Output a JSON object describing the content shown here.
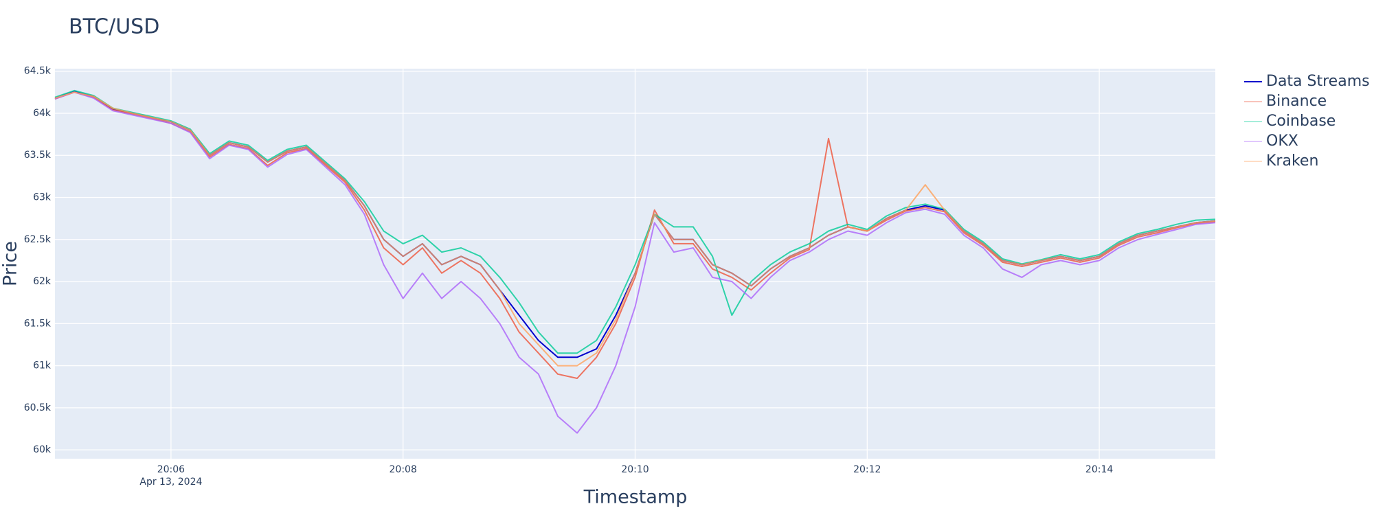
{
  "chart_data": {
    "type": "line",
    "title": "BTC/USD",
    "x_label": "Timestamp",
    "y_label": "Price",
    "x": [
      "2024-04-13 20:05:00",
      "2024-04-13 20:05:10",
      "2024-04-13 20:05:20",
      "2024-04-13 20:05:30",
      "2024-04-13 20:05:40",
      "2024-04-13 20:05:50",
      "2024-04-13 20:06:00",
      "2024-04-13 20:06:10",
      "2024-04-13 20:06:20",
      "2024-04-13 20:06:30",
      "2024-04-13 20:06:40",
      "2024-04-13 20:06:50",
      "2024-04-13 20:07:00",
      "2024-04-13 20:07:10",
      "2024-04-13 20:07:20",
      "2024-04-13 20:07:30",
      "2024-04-13 20:07:40",
      "2024-04-13 20:07:50",
      "2024-04-13 20:08:00",
      "2024-04-13 20:08:10",
      "2024-04-13 20:08:20",
      "2024-04-13 20:08:30",
      "2024-04-13 20:08:40",
      "2024-04-13 20:08:50",
      "2024-04-13 20:09:00",
      "2024-04-13 20:09:10",
      "2024-04-13 20:09:20",
      "2024-04-13 20:09:30",
      "2024-04-13 20:09:40",
      "2024-04-13 20:09:50",
      "2024-04-13 20:10:00",
      "2024-04-13 20:10:10",
      "2024-04-13 20:10:20",
      "2024-04-13 20:10:30",
      "2024-04-13 20:10:40",
      "2024-04-13 20:10:50",
      "2024-04-13 20:11:00",
      "2024-04-13 20:11:10",
      "2024-04-13 20:11:20",
      "2024-04-13 20:11:30",
      "2024-04-13 20:11:40",
      "2024-04-13 20:11:50",
      "2024-04-13 20:12:00",
      "2024-04-13 20:12:10",
      "2024-04-13 20:12:20",
      "2024-04-13 20:12:30",
      "2024-04-13 20:12:40",
      "2024-04-13 20:12:50",
      "2024-04-13 20:13:00",
      "2024-04-13 20:13:10",
      "2024-04-13 20:13:20",
      "2024-04-13 20:13:30",
      "2024-04-13 20:13:40",
      "2024-04-13 20:13:50",
      "2024-04-13 20:14:00",
      "2024-04-13 20:14:10",
      "2024-04-13 20:14:20",
      "2024-04-13 20:14:30",
      "2024-04-13 20:14:40",
      "2024-04-13 20:14:50",
      "2024-04-13 20:15:00"
    ],
    "series": [
      {
        "name": "Data Streams",
        "color": "#0000cc",
        "values": [
          64180,
          64260,
          64200,
          64050,
          64000,
          63950,
          63900,
          63800,
          63500,
          63650,
          63600,
          63420,
          63550,
          63600,
          63400,
          63200,
          62900,
          62500,
          62300,
          62450,
          62200,
          62300,
          62200,
          61900,
          61600,
          61300,
          61100,
          61100,
          61200,
          61600,
          62100,
          62800,
          62500,
          62500,
          62200,
          62100,
          61950,
          62150,
          62300,
          62400,
          62550,
          62650,
          62600,
          62750,
          62850,
          62900,
          62850,
          62600,
          62450,
          62250,
          62200,
          62250,
          62300,
          62250,
          62300,
          62450,
          62550,
          62600,
          62650,
          62700,
          62720
        ]
      },
      {
        "name": "Binance",
        "color": "#ef553b",
        "values": [
          64170,
          64250,
          64190,
          64040,
          63990,
          63940,
          63880,
          63780,
          63480,
          63630,
          63580,
          63380,
          63530,
          63580,
          63380,
          63180,
          62850,
          62400,
          62200,
          62400,
          62100,
          62250,
          62100,
          61800,
          61400,
          61150,
          60900,
          60850,
          61100,
          61500,
          62050,
          62850,
          62450,
          62450,
          62150,
          62050,
          61900,
          62100,
          62280,
          62380,
          63700,
          62650,
          62600,
          62730,
          62840,
          62880,
          62830,
          62580,
          62430,
          62230,
          62180,
          62230,
          62280,
          62230,
          62280,
          62430,
          62530,
          62580,
          62640,
          62690,
          62710
        ]
      },
      {
        "name": "Coinbase",
        "color": "#00cc96",
        "values": [
          64190,
          64270,
          64210,
          64060,
          64010,
          63960,
          63910,
          63810,
          63520,
          63670,
          63620,
          63440,
          63570,
          63620,
          63420,
          63220,
          62950,
          62600,
          62450,
          62550,
          62350,
          62400,
          62300,
          62050,
          61750,
          61400,
          61150,
          61150,
          61300,
          61700,
          62200,
          62800,
          62650,
          62650,
          62300,
          61600,
          62000,
          62200,
          62350,
          62450,
          62600,
          62680,
          62620,
          62780,
          62880,
          62920,
          62860,
          62620,
          62470,
          62270,
          62210,
          62260,
          62320,
          62270,
          62320,
          62470,
          62570,
          62620,
          62680,
          62730,
          62740
        ]
      },
      {
        "name": "OKX",
        "color": "#ab63fa",
        "values": [
          64170,
          64250,
          64180,
          64030,
          63980,
          63930,
          63880,
          63770,
          63460,
          63620,
          63570,
          63360,
          63510,
          63570,
          63360,
          63150,
          62800,
          62200,
          61800,
          62100,
          61800,
          62000,
          61800,
          61500,
          61100,
          60900,
          60400,
          60200,
          60500,
          61000,
          61700,
          62700,
          62350,
          62400,
          62050,
          62000,
          61800,
          62050,
          62250,
          62350,
          62500,
          62600,
          62550,
          62700,
          62820,
          62860,
          62800,
          62550,
          62400,
          62150,
          62050,
          62200,
          62250,
          62200,
          62250,
          62400,
          62500,
          62560,
          62620,
          62680,
          62700
        ]
      },
      {
        "name": "Kraken",
        "color": "#ffa15a",
        "values": [
          64180,
          64250,
          64200,
          64060,
          64000,
          63950,
          63900,
          63800,
          63500,
          63650,
          63600,
          63420,
          63550,
          63600,
          63400,
          63200,
          62900,
          62500,
          62300,
          62450,
          62200,
          62300,
          62200,
          61900,
          61500,
          61250,
          61000,
          61000,
          61150,
          61550,
          62100,
          62800,
          62500,
          62500,
          62200,
          62100,
          61950,
          62150,
          62300,
          62400,
          62550,
          62650,
          62600,
          62750,
          62850,
          63150,
          62850,
          62600,
          62450,
          62250,
          62200,
          62250,
          62300,
          62250,
          62300,
          62450,
          62550,
          62600,
          62650,
          62700,
          62720
        ]
      }
    ],
    "xlim": [
      "2024-04-13 20:05:00",
      "2024-04-13 20:15:00"
    ],
    "xticks": [
      {
        "value": "2024-04-13 20:06:00",
        "label": "20:06"
      },
      {
        "value": "2024-04-13 20:08:00",
        "label": "20:08"
      },
      {
        "value": "2024-04-13 20:10:00",
        "label": "20:10"
      },
      {
        "value": "2024-04-13 20:12:00",
        "label": "20:12"
      },
      {
        "value": "2024-04-13 20:14:00",
        "label": "20:14"
      }
    ],
    "x_date_label": "Apr 13, 2024",
    "ylim": [
      59895,
      64530
    ],
    "yticks": [
      {
        "value": 60000,
        "label": "60k"
      },
      {
        "value": 60500,
        "label": "60.5k"
      },
      {
        "value": 61000,
        "label": "61k"
      },
      {
        "value": 61500,
        "label": "61.5k"
      },
      {
        "value": 62000,
        "label": "62k"
      },
      {
        "value": 62500,
        "label": "62.5k"
      },
      {
        "value": 63000,
        "label": "63k"
      },
      {
        "value": 63500,
        "label": "63.5k"
      },
      {
        "value": 64000,
        "label": "64k"
      },
      {
        "value": 64500,
        "label": "64.5k"
      }
    ],
    "grid": true,
    "legend": "right"
  }
}
